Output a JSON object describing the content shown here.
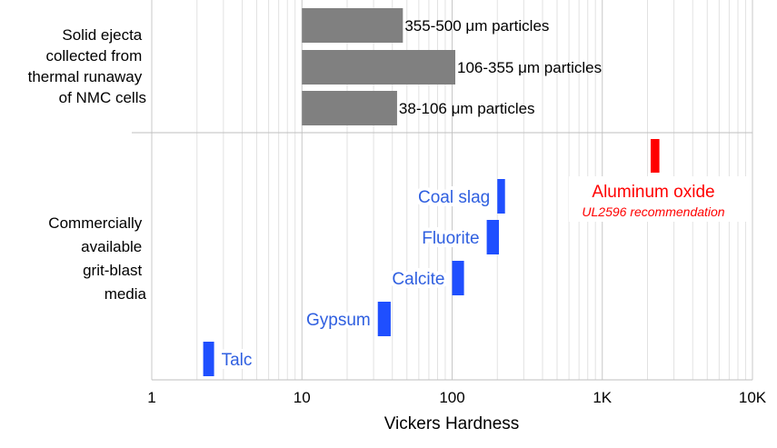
{
  "chart_data": {
    "type": "bar",
    "orientation": "horizontal",
    "x_scale": "log",
    "xlim": [
      1,
      10000
    ],
    "x_ticks": [
      {
        "value": 1,
        "label": "1"
      },
      {
        "value": 10,
        "label": "10"
      },
      {
        "value": 100,
        "label": "100"
      },
      {
        "value": 1000,
        "label": "1K"
      },
      {
        "value": 10000,
        "label": "10K"
      }
    ],
    "xlabel": "Vickers Hardness",
    "grid": "vertical log minor and major",
    "groups": [
      {
        "label_lines": [
          "Solid ejecta",
          "collected from",
          "thermal runaway",
          "of NMC cells"
        ],
        "bars": [
          {
            "label": "355-500 μm particles",
            "start": 10,
            "end": 47,
            "color": "#808080"
          },
          {
            "label": "106-355 μm particles",
            "start": 10,
            "end": 105,
            "color": "#808080"
          },
          {
            "label": "38-106 μm particles",
            "start": 10,
            "end": 43,
            "color": "#808080"
          }
        ]
      },
      {
        "label_lines": [
          "Commercially",
          "available",
          "grit-blast",
          "media"
        ],
        "bars": [
          {
            "label": "Aluminum oxide",
            "note": "UL2596 recommendation",
            "start": 2100,
            "end": 2400,
            "color": "#ff0000"
          },
          {
            "label": "Coal slag",
            "start": 200,
            "end": 225,
            "color": "#1f4fff"
          },
          {
            "label": "Fluorite",
            "start": 170,
            "end": 205,
            "color": "#1f4fff"
          },
          {
            "label": "Calcite",
            "start": 100,
            "end": 120,
            "color": "#1f4fff"
          },
          {
            "label": "Gypsum",
            "start": 32,
            "end": 39,
            "color": "#1f4fff"
          },
          {
            "label": "Talc",
            "start": 2.2,
            "end": 2.6,
            "color": "#1f4fff"
          }
        ]
      }
    ],
    "colors": {
      "ejecta": "#808080",
      "media": "#1f4fff",
      "recommended": "#ff0000",
      "media_text": "#2f5fe0",
      "recommended_text": "#ff0000"
    }
  }
}
